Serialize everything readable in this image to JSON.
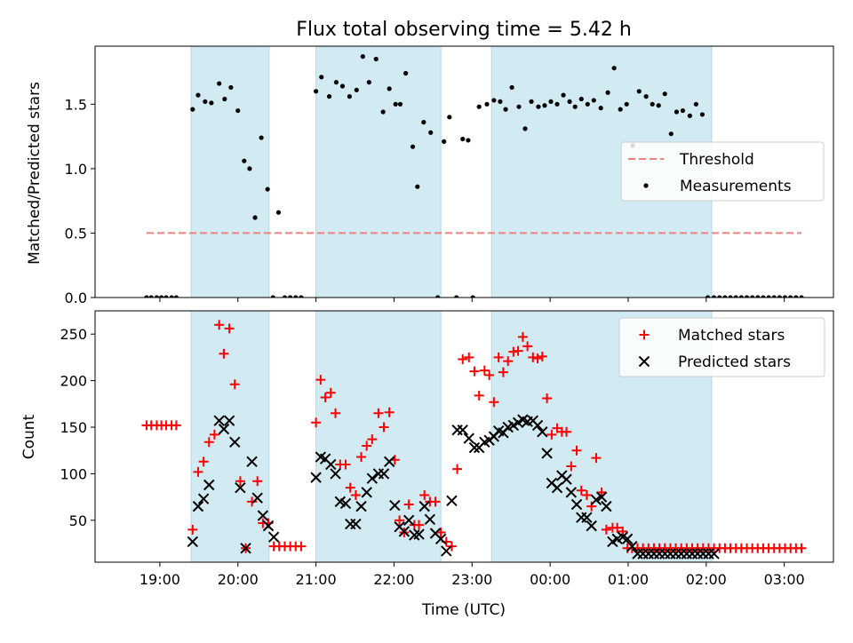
{
  "figure": {
    "title": "Flux total observing time = 5.42 h",
    "xlabel": "Time (UTC)",
    "top_ylabel": "Matched/Predicted stars",
    "bottom_ylabel": "Count"
  },
  "colors": {
    "shade": "#add8e6",
    "threshold": "#f08080",
    "measurement": "#000000",
    "matched": "#ff0000",
    "predicted": "#000000"
  },
  "chart_data": [
    {
      "type": "scatter",
      "title": "Flux total observing time = 5.42 h",
      "xlabel": "",
      "ylabel": "Matched/Predicted stars",
      "x_unit": "hours since 00:00 UTC (negative = previous evening)",
      "xlim": [
        -5.83,
        3.63
      ],
      "ylim": [
        0,
        1.95
      ],
      "yticks": [
        0.0,
        0.5,
        1.0,
        1.5
      ],
      "ytick_labels": [
        "0.0",
        "0.5",
        "1.0",
        "1.5"
      ],
      "legend": {
        "position": "center-right",
        "entries": [
          "Threshold",
          "Measurements"
        ]
      },
      "shaded_intervals": [
        [
          -4.6,
          -3.6
        ],
        [
          -3.0,
          -1.4
        ],
        [
          -0.75,
          2.07
        ]
      ],
      "series": [
        {
          "name": "Threshold",
          "kind": "dashed-line",
          "x": [
            -5.17,
            3.22
          ],
          "y": [
            0.5,
            0.5
          ]
        },
        {
          "name": "Measurements",
          "kind": "points",
          "x": [
            -5.17,
            -5.11,
            -5.04,
            -4.98,
            -4.92,
            -4.85,
            -4.79,
            -4.58,
            -4.51,
            -4.42,
            -4.34,
            -4.24,
            -4.17,
            -4.09,
            -4.0,
            -3.92,
            -3.85,
            -3.78,
            -3.7,
            -3.62,
            -3.55,
            -3.48,
            -3.4,
            -3.33,
            -3.26,
            -3.19,
            -3.0,
            -2.93,
            -2.83,
            -2.74,
            -2.66,
            -2.57,
            -2.48,
            -2.4,
            -2.32,
            -2.23,
            -2.14,
            -2.06,
            -1.98,
            -1.92,
            -1.85,
            -1.76,
            -1.7,
            -1.62,
            -1.53,
            -1.44,
            -1.36,
            -1.29,
            -1.2,
            -1.12,
            -1.05,
            -0.99,
            -0.91,
            -0.81,
            -0.72,
            -0.64,
            -0.57,
            -0.49,
            -0.4,
            -0.32,
            -0.24,
            -0.15,
            -0.07,
            0.01,
            0.09,
            0.17,
            0.25,
            0.32,
            0.4,
            0.48,
            0.56,
            0.65,
            0.74,
            0.82,
            0.9,
            0.98,
            1.06,
            1.14,
            1.23,
            1.31,
            1.39,
            1.47,
            1.55,
            1.62,
            1.7,
            1.79,
            1.87,
            1.95,
            2.02,
            2.1,
            2.17,
            2.24,
            2.31,
            2.38,
            2.45,
            2.52,
            2.59,
            2.66,
            2.73,
            2.8,
            2.87,
            2.94,
            3.01,
            3.08,
            3.15,
            3.22
          ],
          "y": [
            0,
            0,
            0,
            0,
            0,
            0,
            0,
            1.46,
            1.57,
            1.52,
            1.51,
            1.66,
            1.54,
            1.63,
            1.45,
            1.06,
            1.0,
            0.62,
            1.24,
            0.84,
            0,
            0.66,
            0,
            0,
            0,
            0,
            1.6,
            1.71,
            1.56,
            1.67,
            1.64,
            1.56,
            1.61,
            1.87,
            1.67,
            1.85,
            1.44,
            1.62,
            1.5,
            1.5,
            1.74,
            1.17,
            0.86,
            1.36,
            1.28,
            0,
            1.21,
            1.4,
            0,
            1.23,
            1.22,
            0,
            1.48,
            1.5,
            1.53,
            1.52,
            1.46,
            1.63,
            1.48,
            1.31,
            1.52,
            1.48,
            1.49,
            1.52,
            1.5,
            1.57,
            1.52,
            1.48,
            1.54,
            1.5,
            1.53,
            1.47,
            1.59,
            1.78,
            1.46,
            1.5,
            1.18,
            1.6,
            1.56,
            1.5,
            1.49,
            1.58,
            1.27,
            1.44,
            1.45,
            1.41,
            1.5,
            1.42,
            0,
            0,
            0,
            0,
            0,
            0,
            0,
            0,
            0,
            0,
            0,
            0,
            0,
            0,
            0,
            0,
            0,
            0
          ]
        }
      ]
    },
    {
      "type": "scatter",
      "title": "",
      "xlabel": "Time (UTC)",
      "ylabel": "Count",
      "x_unit": "hours since 00:00 UTC (negative = previous evening)",
      "xlim": [
        -5.83,
        3.63
      ],
      "ylim": [
        5,
        275
      ],
      "yticks": [
        50,
        100,
        150,
        200,
        250
      ],
      "ytick_labels": [
        "50",
        "100",
        "150",
        "200",
        "250"
      ],
      "xticks": [
        -5,
        -4,
        -3,
        -2,
        -1,
        0,
        1,
        2,
        3
      ],
      "xtick_labels": [
        "19:00",
        "20:00",
        "21:00",
        "22:00",
        "23:00",
        "00:00",
        "01:00",
        "02:00",
        "03:00"
      ],
      "legend": {
        "position": "top-right",
        "entries": [
          "Matched stars",
          "Predicted stars"
        ]
      },
      "shaded_intervals": [
        [
          -4.6,
          -3.6
        ],
        [
          -3.0,
          -1.4
        ],
        [
          -0.75,
          2.07
        ]
      ],
      "series": [
        {
          "name": "Matched stars",
          "marker": "plus",
          "x": [
            -5.17,
            -5.11,
            -5.04,
            -4.98,
            -4.92,
            -4.85,
            -4.79,
            -4.58,
            -4.51,
            -4.44,
            -4.37,
            -4.3,
            -4.24,
            -4.18,
            -4.11,
            -4.04,
            -3.97,
            -3.9,
            -3.82,
            -3.75,
            -3.68,
            -3.61,
            -3.54,
            -3.47,
            -3.4,
            -3.33,
            -3.26,
            -3.19,
            -3.0,
            -2.94,
            -2.88,
            -2.81,
            -2.75,
            -2.69,
            -2.62,
            -2.56,
            -2.49,
            -2.42,
            -2.35,
            -2.28,
            -2.2,
            -2.13,
            -2.06,
            -1.99,
            -1.93,
            -1.87,
            -1.81,
            -1.74,
            -1.68,
            -1.61,
            -1.54,
            -1.47,
            -1.4,
            -1.33,
            -1.26,
            -1.19,
            -1.12,
            -1.04,
            -0.97,
            -0.91,
            -0.84,
            -0.78,
            -0.72,
            -0.66,
            -0.6,
            -0.54,
            -0.47,
            -0.41,
            -0.35,
            -0.29,
            -0.22,
            -0.16,
            -0.1,
            -0.04,
            0.02,
            0.09,
            0.15,
            0.21,
            0.27,
            0.34,
            0.4,
            0.47,
            0.53,
            0.59,
            0.66,
            0.72,
            0.8,
            0.86,
            0.93,
            0.99,
            1.05,
            1.12,
            1.19,
            1.26,
            1.33,
            1.4,
            1.47,
            1.54,
            1.61,
            1.68,
            1.75,
            1.82,
            1.89,
            1.96,
            2.03,
            2.1,
            2.17,
            2.24,
            2.31,
            2.38,
            2.45,
            2.52,
            2.59,
            2.66,
            2.73,
            2.8,
            2.87,
            2.94,
            3.01,
            3.08,
            3.15,
            3.22
          ],
          "y": [
            152,
            152,
            152,
            152,
            152,
            152,
            152,
            40,
            102,
            113,
            134,
            142,
            260,
            229,
            256,
            196,
            92,
            20,
            70,
            92,
            47,
            47,
            22,
            22,
            22,
            22,
            22,
            22,
            155,
            201,
            182,
            187,
            165,
            110,
            110,
            85,
            77,
            118,
            130,
            137,
            165,
            150,
            166,
            115,
            50,
            37,
            67,
            45,
            45,
            77,
            70,
            70,
            37,
            27,
            22,
            105,
            223,
            225,
            210,
            184,
            211,
            206,
            177,
            225,
            209,
            221,
            231,
            232,
            247,
            237,
            225,
            224,
            226,
            181,
            142,
            149,
            145,
            145,
            108,
            125,
            82,
            77,
            65,
            117,
            80,
            40,
            42,
            42,
            38,
            20,
            20,
            20,
            20,
            20,
            20,
            20,
            20,
            20,
            20,
            20,
            20,
            20,
            20,
            20,
            20,
            20,
            20,
            20,
            20,
            20,
            20,
            20,
            20,
            20,
            20,
            20,
            20,
            20,
            20,
            20,
            20,
            20
          ]
        },
        {
          "name": "Predicted stars",
          "marker": "x",
          "x": [
            -4.58,
            -4.51,
            -4.44,
            -4.37,
            -4.24,
            -4.18,
            -4.11,
            -4.04,
            -3.97,
            -3.9,
            -3.82,
            -3.75,
            -3.68,
            -3.61,
            -3.54,
            -3.0,
            -2.94,
            -2.88,
            -2.81,
            -2.75,
            -2.69,
            -2.62,
            -2.56,
            -2.49,
            -2.42,
            -2.35,
            -2.28,
            -2.2,
            -2.13,
            -2.06,
            -1.99,
            -1.93,
            -1.87,
            -1.81,
            -1.74,
            -1.68,
            -1.61,
            -1.54,
            -1.47,
            -1.4,
            -1.33,
            -1.26,
            -1.19,
            -1.12,
            -1.04,
            -0.97,
            -0.91,
            -0.84,
            -0.78,
            -0.72,
            -0.66,
            -0.6,
            -0.54,
            -0.47,
            -0.41,
            -0.35,
            -0.29,
            -0.22,
            -0.16,
            -0.1,
            -0.04,
            0.02,
            0.09,
            0.15,
            0.21,
            0.27,
            0.34,
            0.4,
            0.47,
            0.53,
            0.59,
            0.66,
            0.72,
            0.8,
            0.86,
            0.93,
            0.99,
            1.05,
            1.12,
            1.19,
            1.26,
            1.33,
            1.4,
            1.47,
            1.54,
            1.61,
            1.68,
            1.75,
            1.82,
            1.89,
            1.96,
            2.03,
            2.1
          ],
          "y": [
            27,
            65,
            73,
            88,
            157,
            148,
            157,
            134,
            85,
            20,
            113,
            74,
            55,
            44,
            32,
            96,
            118,
            116,
            110,
            100,
            70,
            68,
            46,
            46,
            65,
            80,
            95,
            100,
            100,
            113,
            66,
            43,
            38,
            50,
            34,
            35,
            65,
            51,
            36,
            30,
            17,
            71,
            147,
            147,
            138,
            128,
            128,
            134,
            136,
            140,
            146,
            144,
            150,
            152,
            155,
            158,
            156,
            157,
            152,
            145,
            122,
            90,
            85,
            98,
            94,
            80,
            67,
            53,
            53,
            44,
            72,
            75,
            65,
            27,
            30,
            32,
            30,
            22,
            14,
            14,
            14,
            14,
            14,
            14,
            14,
            14,
            14,
            14,
            14,
            14,
            14,
            14,
            14
          ]
        }
      ]
    }
  ]
}
